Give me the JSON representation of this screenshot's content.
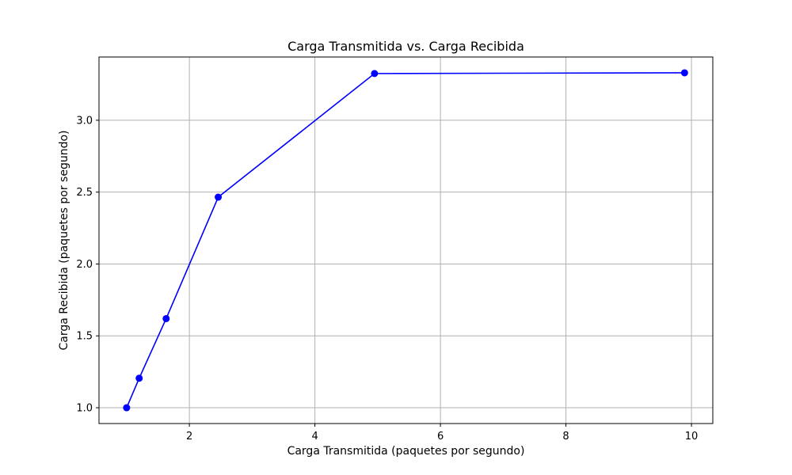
{
  "chart_data": {
    "type": "line",
    "title": "Carga Transmitida vs. Carga Recibida",
    "xlabel": "Carga Transmitida (paquetes por segundo)",
    "ylabel": "Carga Recibida (paquetes por segundo)",
    "xlim": [
      0.56,
      10.34
    ],
    "ylim": [
      0.89,
      3.44
    ],
    "xticks": [
      2,
      4,
      6,
      8,
      10
    ],
    "yticks": [
      1.0,
      1.5,
      2.0,
      2.5,
      3.0
    ],
    "xtick_labels": [
      "2",
      "4",
      "6",
      "8",
      "10"
    ],
    "ytick_labels": [
      "1.0",
      "1.5",
      "2.0",
      "2.5",
      "3.0"
    ],
    "grid": true,
    "series": [
      {
        "color": "#0000ff",
        "marker": "circle",
        "x": [
          1.0,
          1.2,
          1.63,
          2.46,
          4.95,
          9.89
        ],
        "y": [
          1.0,
          1.205,
          1.62,
          2.465,
          3.325,
          3.33
        ]
      }
    ]
  }
}
